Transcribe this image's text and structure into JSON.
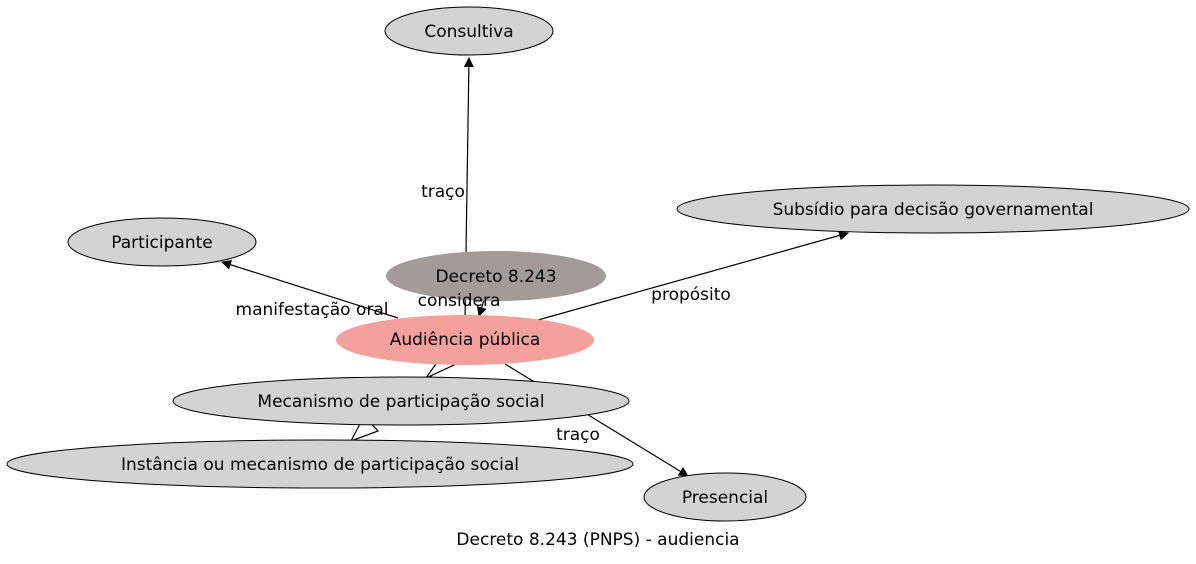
{
  "caption": "Decreto 8.243 (PNPS) - audiencia",
  "colors": {
    "node_fill": "#d3d3d3",
    "focus_fill": "#f4a09c",
    "source_fill": "#a39b98",
    "stroke": "#000000"
  },
  "nodes": {
    "consultiva": "Consultiva",
    "subsidio": "Subsídio para decisão governamental",
    "participante": "Participante",
    "decreto": "Decreto 8.243",
    "audiencia": "Audiência pública",
    "mecanismo": "Mecanismo de participação social",
    "instancia": "Instância ou mecanismo de participação social",
    "presencial": "Presencial"
  },
  "edges": {
    "traco_consultiva": "traço",
    "manifestacao": "manifestação oral",
    "considera": "considera",
    "proposito": "propósito",
    "traco_presencial": "traço"
  }
}
